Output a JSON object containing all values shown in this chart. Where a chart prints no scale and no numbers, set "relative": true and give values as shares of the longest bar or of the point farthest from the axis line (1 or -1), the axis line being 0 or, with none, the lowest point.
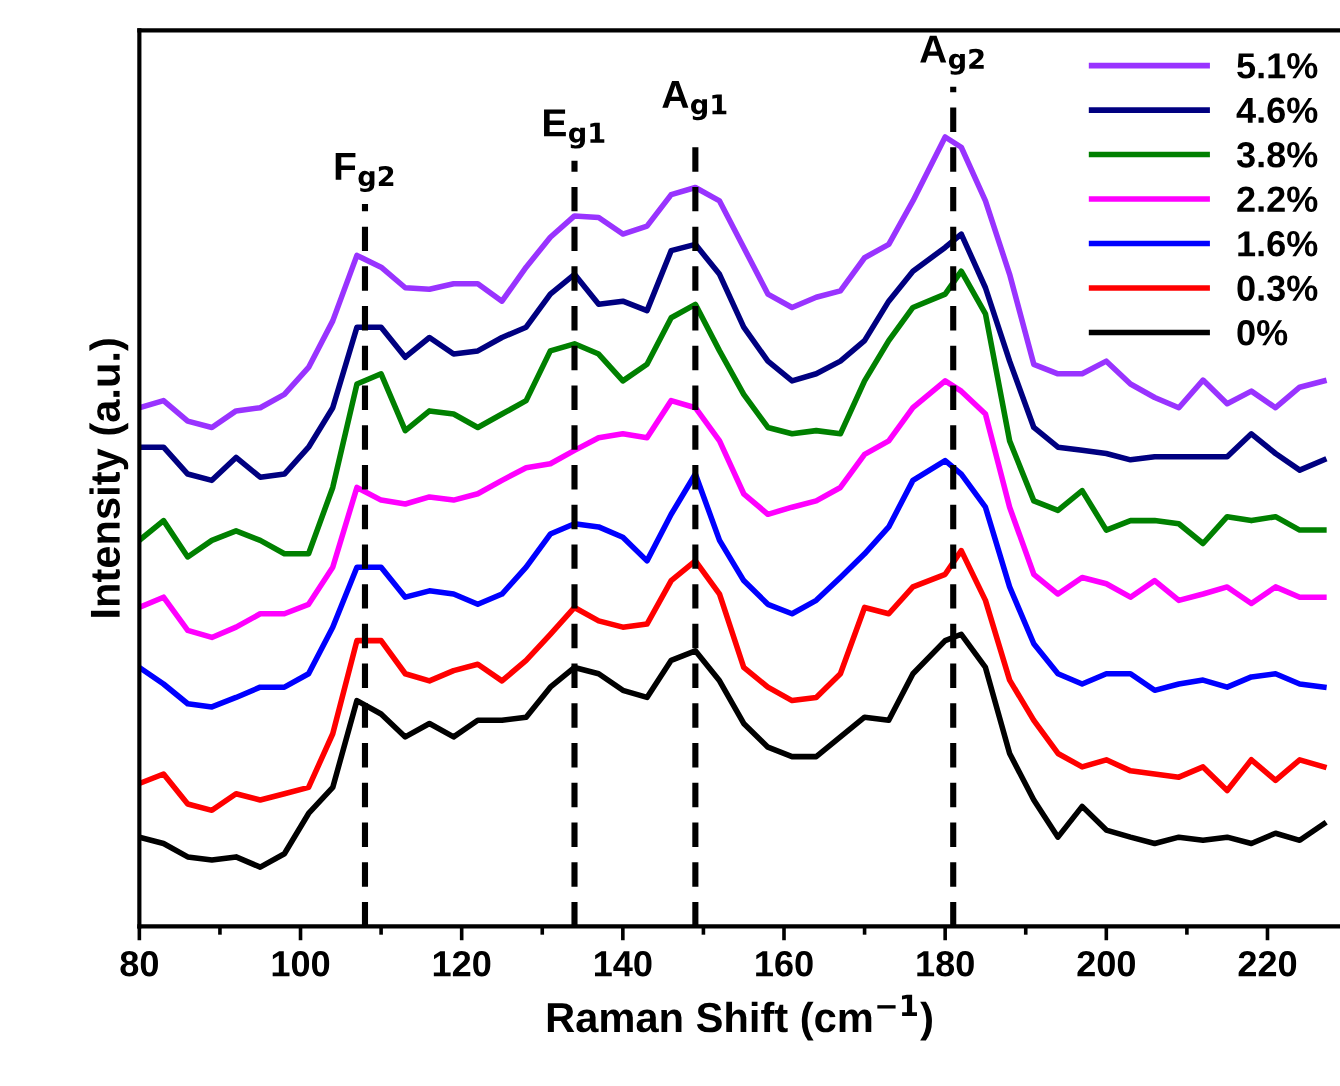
{
  "chart_data": {
    "type": "line",
    "relative": true,
    "xlabel": "Raman Shift (cm$^{−1}$)",
    "ylabel": "Intensity (a.u.)",
    "x": [
      80,
      83,
      86,
      89,
      92,
      95,
      98,
      101,
      104,
      107,
      110,
      113,
      116,
      119,
      122,
      125,
      128,
      131,
      134,
      137,
      140,
      143,
      146,
      149,
      152,
      155,
      158,
      161,
      164,
      167,
      170,
      173,
      176,
      180,
      182,
      185,
      188,
      191,
      194,
      197,
      200,
      203,
      206,
      209,
      212,
      215,
      218,
      221,
      224,
      227
    ],
    "xlim": [
      80,
      229
    ],
    "xticks": [
      80,
      100,
      120,
      140,
      160,
      180,
      200,
      220
    ],
    "legend": "top right",
    "grid": false,
    "line_style": "solid",
    "marker": "none",
    "tick_labels": "x",
    "series": [
      {
        "name": "5.1%",
        "color": "#9933ff",
        "values": [
          0.657,
          0.666,
          0.64,
          0.632,
          0.653,
          0.657,
          0.674,
          0.708,
          0.767,
          0.85,
          0.835,
          0.809,
          0.807,
          0.814,
          0.814,
          0.792,
          0.835,
          0.873,
          0.9,
          0.898,
          0.877,
          0.887,
          0.927,
          0.936,
          0.919,
          0.86,
          0.801,
          0.784,
          0.797,
          0.805,
          0.847,
          0.864,
          0.919,
          1.0,
          0.987,
          0.919,
          0.826,
          0.712,
          0.7,
          0.7,
          0.716,
          0.687,
          0.67,
          0.657,
          0.692,
          0.662,
          0.678,
          0.657,
          0.683,
          0.691
        ]
      },
      {
        "name": "4.6%",
        "color": "#000080",
        "values": [
          0.607,
          0.607,
          0.573,
          0.565,
          0.594,
          0.569,
          0.573,
          0.607,
          0.657,
          0.759,
          0.759,
          0.721,
          0.746,
          0.725,
          0.729,
          0.746,
          0.759,
          0.801,
          0.826,
          0.788,
          0.792,
          0.78,
          0.856,
          0.864,
          0.826,
          0.759,
          0.716,
          0.691,
          0.7,
          0.716,
          0.742,
          0.792,
          0.83,
          0.86,
          0.877,
          0.809,
          0.716,
          0.632,
          0.607,
          0.603,
          0.599,
          0.591,
          0.595,
          0.595,
          0.595,
          0.595,
          0.624,
          0.599,
          0.578,
          0.591
        ]
      },
      {
        "name": "3.8%",
        "color": "#008000",
        "values": [
          0.489,
          0.514,
          0.468,
          0.489,
          0.501,
          0.489,
          0.472,
          0.472,
          0.556,
          0.687,
          0.7,
          0.628,
          0.653,
          0.649,
          0.632,
          0.649,
          0.666,
          0.729,
          0.738,
          0.725,
          0.691,
          0.712,
          0.771,
          0.788,
          0.729,
          0.674,
          0.632,
          0.624,
          0.628,
          0.624,
          0.691,
          0.742,
          0.784,
          0.801,
          0.83,
          0.776,
          0.615,
          0.539,
          0.527,
          0.552,
          0.502,
          0.514,
          0.514,
          0.51,
          0.485,
          0.519,
          0.514,
          0.519,
          0.502,
          0.502
        ]
      },
      {
        "name": "2.2%",
        "color": "#ff00ff",
        "values": [
          0.404,
          0.417,
          0.375,
          0.366,
          0.379,
          0.396,
          0.396,
          0.408,
          0.455,
          0.556,
          0.54,
          0.535,
          0.544,
          0.54,
          0.548,
          0.565,
          0.581,
          0.586,
          0.603,
          0.619,
          0.624,
          0.619,
          0.666,
          0.657,
          0.615,
          0.548,
          0.522,
          0.531,
          0.539,
          0.556,
          0.598,
          0.615,
          0.657,
          0.691,
          0.678,
          0.649,
          0.531,
          0.446,
          0.421,
          0.442,
          0.434,
          0.417,
          0.438,
          0.413,
          0.421,
          0.43,
          0.409,
          0.43,
          0.417,
          0.417
        ]
      },
      {
        "name": "1.6%",
        "color": "#0000ff",
        "values": [
          0.328,
          0.307,
          0.282,
          0.278,
          0.29,
          0.303,
          0.303,
          0.32,
          0.379,
          0.455,
          0.455,
          0.417,
          0.425,
          0.421,
          0.408,
          0.421,
          0.455,
          0.497,
          0.51,
          0.506,
          0.493,
          0.463,
          0.522,
          0.573,
          0.489,
          0.438,
          0.408,
          0.396,
          0.413,
          0.442,
          0.472,
          0.506,
          0.565,
          0.59,
          0.573,
          0.531,
          0.43,
          0.358,
          0.32,
          0.307,
          0.32,
          0.32,
          0.299,
          0.307,
          0.312,
          0.303,
          0.316,
          0.32,
          0.307,
          0.303
        ]
      },
      {
        "name": "0.3%",
        "color": "#ff0000",
        "values": [
          0.181,
          0.193,
          0.155,
          0.147,
          0.168,
          0.16,
          0.168,
          0.176,
          0.244,
          0.362,
          0.362,
          0.32,
          0.311,
          0.324,
          0.332,
          0.311,
          0.337,
          0.37,
          0.404,
          0.387,
          0.379,
          0.383,
          0.438,
          0.463,
          0.421,
          0.328,
          0.303,
          0.286,
          0.29,
          0.32,
          0.404,
          0.396,
          0.43,
          0.446,
          0.476,
          0.413,
          0.312,
          0.261,
          0.219,
          0.202,
          0.211,
          0.197,
          0.193,
          0.189,
          0.202,
          0.172,
          0.211,
          0.185,
          0.211,
          0.202
        ]
      },
      {
        "name": "0%",
        "color": "#000000",
        "values": [
          0.113,
          0.105,
          0.088,
          0.084,
          0.088,
          0.075,
          0.092,
          0.143,
          0.176,
          0.286,
          0.269,
          0.24,
          0.257,
          0.24,
          0.261,
          0.261,
          0.265,
          0.303,
          0.328,
          0.32,
          0.299,
          0.29,
          0.337,
          0.349,
          0.311,
          0.257,
          0.227,
          0.215,
          0.215,
          0.24,
          0.265,
          0.261,
          0.32,
          0.362,
          0.37,
          0.328,
          0.219,
          0.16,
          0.113,
          0.152,
          0.122,
          0.113,
          0.105,
          0.113,
          0.109,
          0.113,
          0.105,
          0.118,
          0.109,
          0.13
        ]
      }
    ],
    "ref_lines": [
      {
        "axis": "x",
        "value": 108,
        "label": "F$_{g2}$",
        "color": "#000000",
        "line_style": "dashed"
      },
      {
        "axis": "x",
        "value": 134,
        "label": "E$_{g1}$",
        "color": "#000000",
        "line_style": "dashed"
      },
      {
        "axis": "x",
        "value": 149,
        "label": "A$_{g1}$",
        "color": "#000000",
        "line_style": "dashed"
      },
      {
        "axis": "x",
        "value": 181,
        "label": "A$_{g2}$",
        "color": "#000000",
        "line_style": "dashed"
      }
    ]
  }
}
